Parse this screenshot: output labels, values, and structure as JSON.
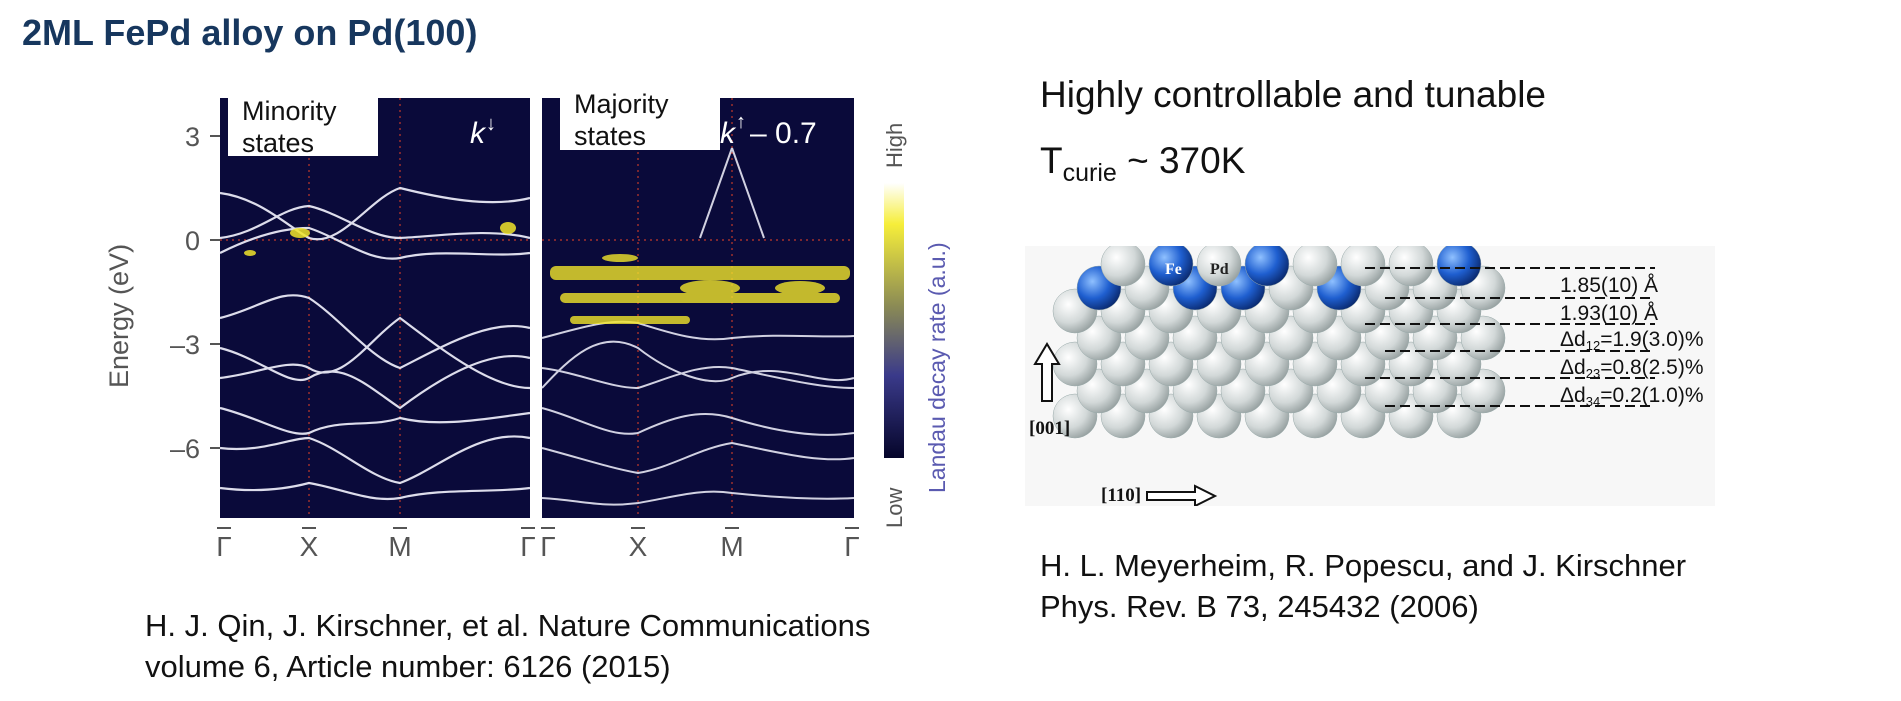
{
  "slide": {
    "title": "2ML FePd alloy on Pd(100)"
  },
  "band_figure": {
    "left_panel_label_line1": "Minority",
    "left_panel_label_line2": "states",
    "right_panel_label_line1": "Majority",
    "right_panel_label_line2": "states",
    "left_k_label": "k",
    "left_k_arrow": "↓",
    "right_k_label": "k",
    "right_k_arrow": "↑",
    "right_k_suffix": "– 0.7",
    "y_axis_label": "Energy (eV)",
    "y_ticks": [
      "3",
      "0",
      "–3",
      "–6"
    ],
    "x_ticks_left": [
      "Γ",
      "X",
      "M",
      "Γ"
    ],
    "x_ticks_right": [
      "Γ",
      "X",
      "M",
      "Γ"
    ],
    "colorbar_label": "Landau decay rate (a.u.)",
    "colorbar_high": "High",
    "colorbar_low": "Low",
    "colors": {
      "background": "#0a0a3a",
      "band": "#ffffff",
      "hot": "#f2e52a",
      "colorbar_text": "#5a5ab0"
    }
  },
  "left_citation": {
    "line1": "H. J. Qin, J. Kirschner, et al. Nature Communications",
    "line2": "volume 6, Article number: 6126 (2015)"
  },
  "right_text": {
    "line1": "Highly controllable and tunable",
    "tcurie_T": "T",
    "tcurie_sub": "curie",
    "tcurie_value": " ~ 370K"
  },
  "lattice_figure": {
    "fe_label": "Fe",
    "pd_label": "Pd",
    "spacing_labels": [
      "1.85(10) Å",
      "1.93(10) Å"
    ],
    "delta_labels": [
      {
        "prefix": "Δd",
        "sub": "12",
        "value": "=1.9(3.0)%"
      },
      {
        "prefix": "Δd",
        "sub": "23",
        "value": "=0.8(2.5)%"
      },
      {
        "prefix": "Δd",
        "sub": "34",
        "value": "=0.2(1.0)%"
      }
    ],
    "axis_vertical": "[001]",
    "axis_horizontal": "[110]",
    "colors": {
      "fe": "#1f5fd0",
      "pd": "#d9dddd"
    }
  },
  "right_citation": {
    "line1": "H. L. Meyerheim, R. Popescu, and J. Kirschner",
    "line2": "Phys. Rev. B 73, 245432 (2006)"
  }
}
